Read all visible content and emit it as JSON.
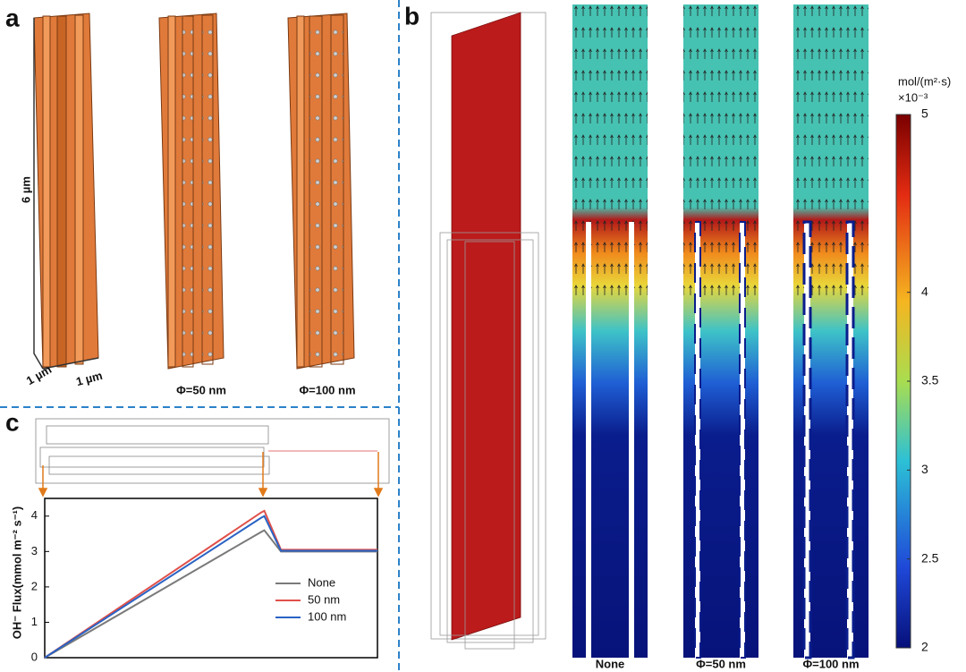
{
  "panels": {
    "a": {
      "label": "a",
      "height_label": "6 µm",
      "width_labels": [
        "1 µm",
        "1 µm"
      ],
      "captions": [
        "Φ=50 nm",
        "Φ=100 nm"
      ]
    },
    "b": {
      "label": "b",
      "captions": [
        "None",
        "Φ=50 nm",
        "Φ=100 nm"
      ],
      "colorbar": {
        "unit": "mol/(m²·s)",
        "scale": "×10⁻³",
        "lim": [
          2,
          5
        ],
        "ticks": [
          2,
          2.5,
          3,
          3.5,
          4,
          5
        ]
      }
    },
    "c": {
      "label": "c"
    }
  },
  "chart_data": {
    "type": "line",
    "ylabel": "OH⁻ Flux(mmol m⁻² s⁻¹)",
    "x": [
      0,
      6.5,
      6.6,
      7.1,
      10
    ],
    "xlim": [
      0,
      10
    ],
    "ylim": [
      0,
      4.5
    ],
    "yticks": [
      0,
      1,
      2,
      3,
      4
    ],
    "series": [
      {
        "name": "None",
        "color": "#7a7a7a",
        "values": [
          0,
          3.55,
          3.6,
          3.0,
          3.0
        ]
      },
      {
        "name": "50 nm",
        "color": "#e0504a",
        "values": [
          0,
          4.1,
          4.15,
          3.05,
          3.05
        ]
      },
      {
        "name": "100 nm",
        "color": "#2a63c4",
        "values": [
          0,
          3.95,
          4.0,
          3.02,
          3.02
        ]
      }
    ]
  }
}
